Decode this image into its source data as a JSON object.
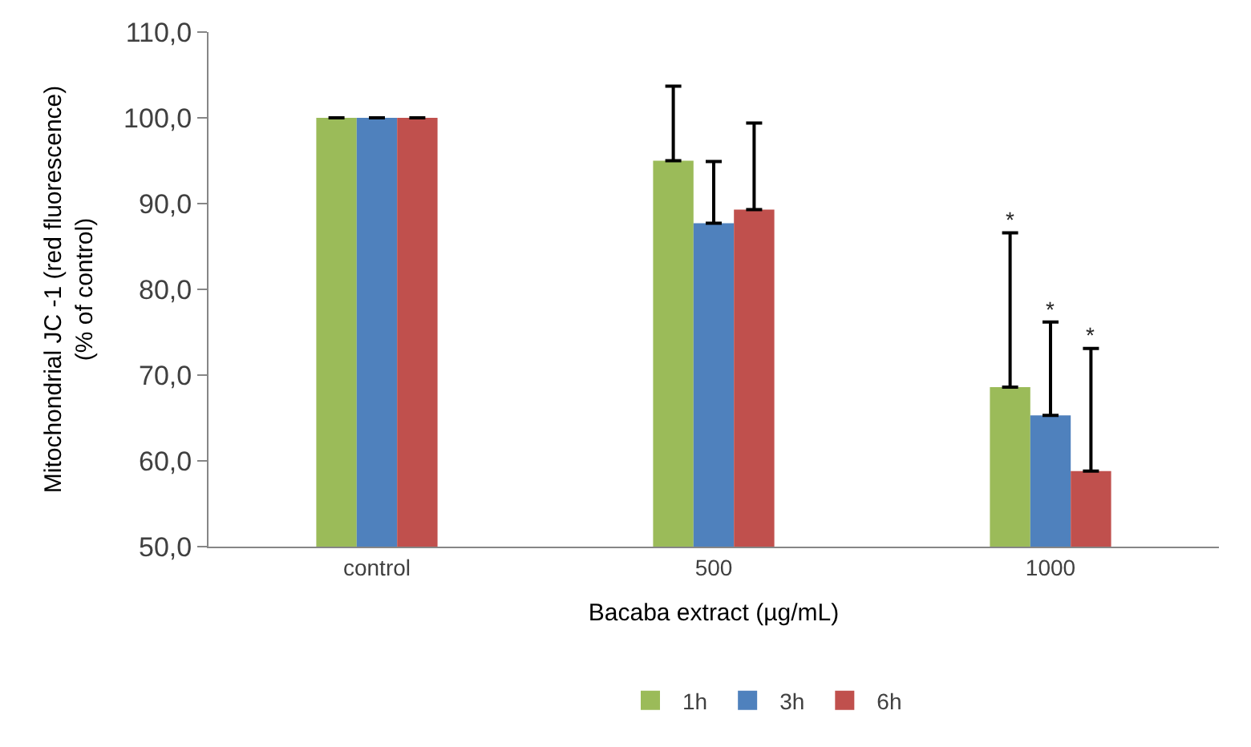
{
  "chart_data": {
    "type": "bar",
    "xlabel": "Bacaba extract (µg/mL)",
    "ylabel": "Mitochondrial JC -1 (red fluorescence)\n(% of control)",
    "categories": [
      "control",
      "500",
      "1000"
    ],
    "series": [
      {
        "name": "1h",
        "color": "#9bbb59",
        "values": [
          100.0,
          95.0,
          68.6
        ],
        "errors": [
          null,
          [
            95.0,
            103.7
          ],
          [
            68.6,
            86.6
          ]
        ]
      },
      {
        "name": "3h",
        "color": "#4f81bd",
        "values": [
          100.0,
          87.7,
          65.3
        ],
        "errors": [
          null,
          [
            87.7,
            94.9
          ],
          [
            65.3,
            76.2
          ]
        ]
      },
      {
        "name": "6h",
        "color": "#c0504d",
        "values": [
          100.0,
          89.3,
          58.8
        ],
        "errors": [
          null,
          [
            89.3,
            99.4
          ],
          [
            58.8,
            73.1
          ]
        ]
      }
    ],
    "annotations": [
      "*",
      "*",
      "*"
    ],
    "ylim": [
      50,
      110
    ],
    "yticks": [
      {
        "value": 50,
        "label": "50,0"
      },
      {
        "value": 60,
        "label": "60,0"
      },
      {
        "value": 70,
        "label": "70,0"
      },
      {
        "value": 80,
        "label": "80,0"
      },
      {
        "value": 90,
        "label": "90,0"
      },
      {
        "value": 100,
        "label": "100,0"
      },
      {
        "value": 110,
        "label": "110,0"
      }
    ],
    "legend": "bottom"
  }
}
